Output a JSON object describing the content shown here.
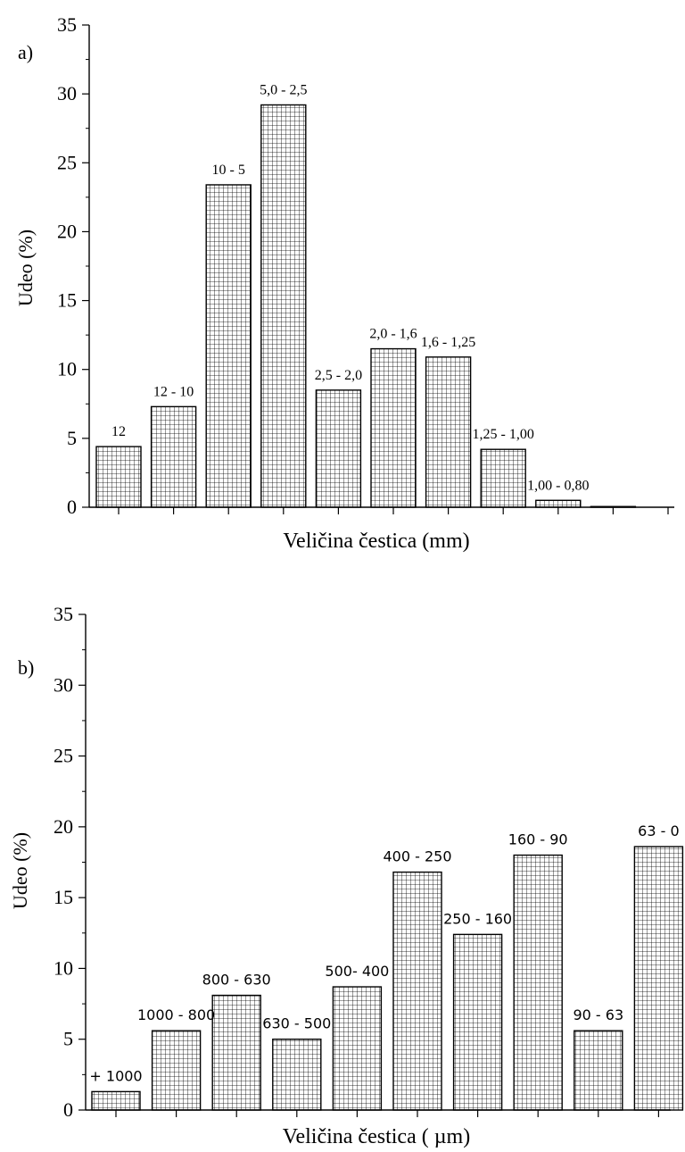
{
  "chart_data": [
    {
      "type": "bar",
      "panel_label": "a)",
      "xlabel": "Veličina čestica (mm)",
      "ylabel": "Udeo (%)",
      "ylim": [
        0,
        35
      ],
      "yticks": [
        0,
        5,
        10,
        15,
        20,
        25,
        30,
        35
      ],
      "grid": false,
      "legend": "none",
      "bar_pattern": "crosshatch",
      "categories": [
        "12",
        "12 - 10",
        "10 - 5",
        "5,0 - 2,5",
        "2,5 - 2,0",
        "2,0 - 1,6",
        "1,6 - 1,25",
        "1,25 - 1,00",
        "1,00 - 0,80",
        ""
      ],
      "values": [
        4.4,
        7.3,
        23.4,
        29.2,
        8.5,
        11.5,
        10.9,
        4.2,
        0.5,
        0.05
      ]
    },
    {
      "type": "bar",
      "panel_label": "b)",
      "xlabel": "Veličina čestica ( µm)",
      "ylabel": "Udeo (%)",
      "ylim": [
        0,
        35
      ],
      "yticks": [
        0,
        5,
        10,
        15,
        20,
        25,
        30,
        35
      ],
      "grid": false,
      "legend": "none",
      "bar_pattern": "crosshatch",
      "categories": [
        "+ 1000",
        "1000 - 800",
        "800 - 630",
        "630 - 500",
        "500- 400",
        "400 - 250",
        "250 - 160",
        "160 - 90",
        "90 - 63",
        "63 - 0"
      ],
      "values": [
        1.3,
        5.6,
        8.1,
        5.0,
        8.7,
        16.8,
        12.4,
        18.0,
        5.6,
        18.6
      ]
    }
  ]
}
